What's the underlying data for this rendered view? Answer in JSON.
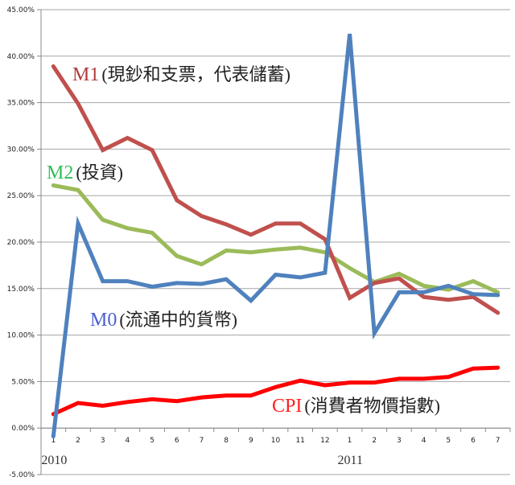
{
  "chart_data": {
    "type": "line",
    "title": "",
    "xlabel": "",
    "ylabel": "",
    "ylim": [
      -0.05,
      0.45
    ],
    "yticks": [
      "-5.00%",
      "0.00%",
      "5.00%",
      "10.00%",
      "15.00%",
      "20.00%",
      "25.00%",
      "30.00%",
      "35.00%",
      "40.00%",
      "45.00%"
    ],
    "categories": [
      "1",
      "2",
      "3",
      "4",
      "5",
      "6",
      "7",
      "8",
      "9",
      "10",
      "11",
      "12",
      "1",
      "2",
      "3",
      "4",
      "5",
      "6",
      "7"
    ],
    "year_labels": [
      {
        "label": "2010",
        "index": 0
      },
      {
        "label": "2011",
        "index": 12
      }
    ],
    "grid": true,
    "legend": "none",
    "series": [
      {
        "name": "M1",
        "annotation_code": "M1",
        "annotation_text": "(現鈔和支票，代表儲蓄)",
        "color": "#c0504d",
        "code_color": "#b23a3a",
        "values": [
          38.9,
          34.9,
          29.9,
          31.2,
          29.9,
          24.5,
          22.8,
          21.9,
          20.8,
          22.0,
          22.0,
          20.3,
          14.0,
          15.6,
          16.1,
          14.1,
          13.8,
          14.1,
          12.4
        ]
      },
      {
        "name": "M2",
        "annotation_code": "M2",
        "annotation_text": "(投資)",
        "color": "#9bbb59",
        "code_color": "#2fbf5a",
        "values": [
          26.1,
          25.6,
          22.4,
          21.5,
          21.0,
          18.5,
          17.6,
          19.1,
          18.9,
          19.2,
          19.4,
          18.9,
          17.2,
          15.7,
          16.6,
          15.3,
          14.9,
          15.8,
          14.6
        ]
      },
      {
        "name": "M0",
        "annotation_code": "M0",
        "annotation_text": "(流通中的貨幣)",
        "color": "#4f81bd",
        "code_color": "#4a5fd0",
        "values": [
          -0.9,
          22.0,
          15.8,
          15.8,
          15.2,
          15.6,
          15.5,
          16.0,
          13.7,
          16.5,
          16.2,
          16.7,
          42.4,
          10.2,
          14.6,
          14.6,
          15.3,
          14.4,
          14.3
        ]
      },
      {
        "name": "CPI",
        "annotation_code": "CPI",
        "annotation_text": "(消費者物價指數)",
        "color": "#ff0000",
        "code_color": "#ff2020",
        "values": [
          1.5,
          2.7,
          2.4,
          2.8,
          3.1,
          2.9,
          3.3,
          3.5,
          3.5,
          4.4,
          5.1,
          4.6,
          4.9,
          4.9,
          5.3,
          5.3,
          5.5,
          6.4,
          6.5
        ]
      }
    ]
  }
}
